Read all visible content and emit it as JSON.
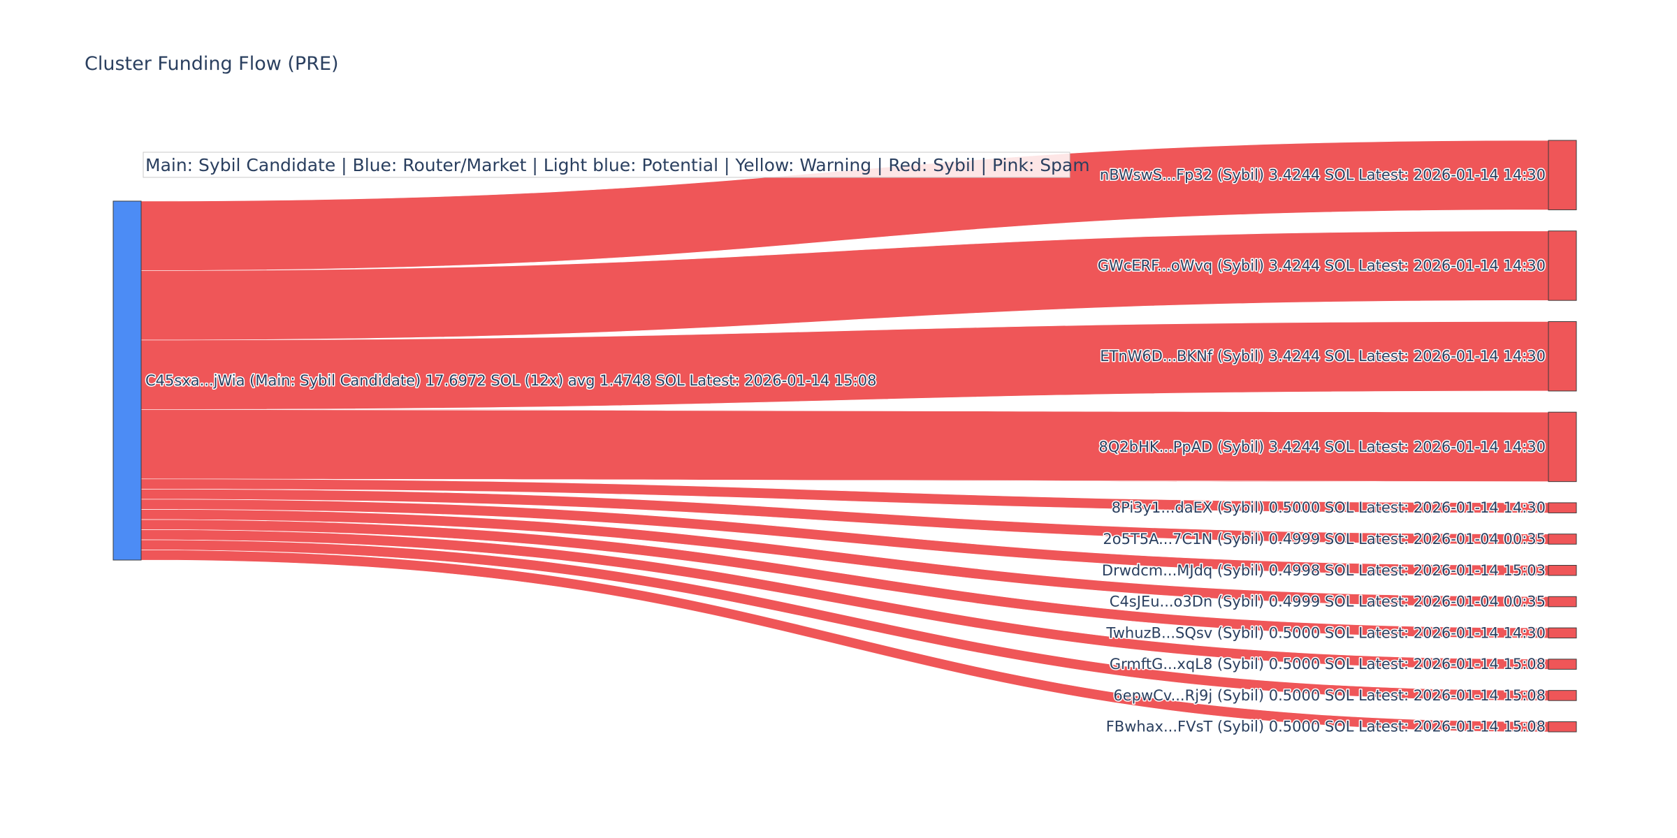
{
  "title": "Cluster Funding Flow (PRE)",
  "legend_note": "Main: Sybil Candidate  |  Blue: Router/Market | Light blue: Potential | Yellow: Warning | Red: Sybil | Pink: Spam",
  "colors": {
    "main_node": "#4c8cf5",
    "sybil": "#ef5658",
    "node_border": "#3b3b3b",
    "text": "#2a3f5f"
  },
  "chart_data": {
    "type": "sankey",
    "title": "Cluster Funding Flow (PRE)",
    "source": {
      "label": "C45sxa...jWia (Main: Sybil Candidate) 17.6972 SOL (12x) avg 1.4748 SOL Latest: 2026-01-14 15:08",
      "category": "main",
      "total_sol": 17.6972
    },
    "targets": [
      {
        "label": "nBWswS...Fp32 (Sybil) 3.4244 SOL Latest: 2026-01-14 14:30",
        "value": 3.4244,
        "category": "sybil"
      },
      {
        "label": "GWcERF...oWvq (Sybil) 3.4244 SOL Latest: 2026-01-14 14:30",
        "value": 3.4244,
        "category": "sybil"
      },
      {
        "label": "ETnW6D...BKNf (Sybil) 3.4244 SOL Latest: 2026-01-14 14:30",
        "value": 3.4244,
        "category": "sybil"
      },
      {
        "label": "8Q2bHK...PpAD (Sybil) 3.4244 SOL Latest: 2026-01-14 14:30",
        "value": 3.4244,
        "category": "sybil"
      },
      {
        "label": "8Pi3y1...daEX (Sybil) 0.5000 SOL Latest: 2026-01-14 14:30",
        "value": 0.5,
        "category": "sybil"
      },
      {
        "label": "2o5T5A...7C1N (Sybil) 0.4999 SOL Latest: 2026-01-04 00:35",
        "value": 0.4999,
        "category": "sybil"
      },
      {
        "label": "Drwdcm...MJdq (Sybil) 0.4998 SOL Latest: 2026-01-14 15:03",
        "value": 0.4998,
        "category": "sybil"
      },
      {
        "label": "C4sJEu...o3Dn (Sybil) 0.4999 SOL Latest: 2026-01-04 00:35",
        "value": 0.4999,
        "category": "sybil"
      },
      {
        "label": "TwhuzB...SQsv (Sybil) 0.5000 SOL Latest: 2026-01-14 14:30",
        "value": 0.5,
        "category": "sybil"
      },
      {
        "label": "GrmftG...xqL8 (Sybil) 0.5000 SOL Latest: 2026-01-14 15:08",
        "value": 0.5,
        "category": "sybil"
      },
      {
        "label": "6epwCv...Rj9j (Sybil) 0.5000 SOL Latest: 2026-01-14 15:08",
        "value": 0.5,
        "category": "sybil"
      },
      {
        "label": "FBwhax...FVsT (Sybil) 0.5000 SOL Latest: 2026-01-14 15:08",
        "value": 0.5,
        "category": "sybil"
      }
    ]
  }
}
